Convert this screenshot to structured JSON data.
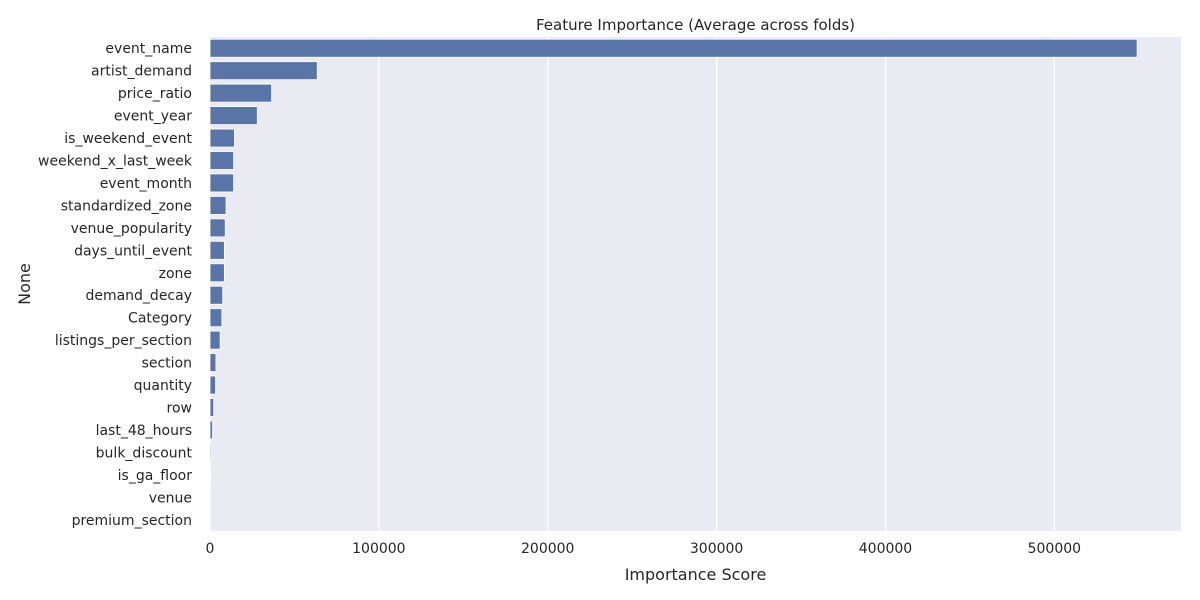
{
  "chart_data": {
    "type": "bar",
    "orientation": "horizontal",
    "title": "Feature Importance (Average across folds)",
    "xlabel": "Importance Score",
    "ylabel": "None",
    "xlim": [
      0,
      575000
    ],
    "x_ticks": [
      0,
      100000,
      200000,
      300000,
      400000,
      500000
    ],
    "x_tick_labels": [
      "0",
      "100000",
      "200000",
      "300000",
      "400000",
      "500000"
    ],
    "grid": true,
    "bar_color": "#5975a8",
    "background_color": "#eaeaf2",
    "grid_color": "#ffffff",
    "categories": [
      "event_name",
      "artist_demand",
      "price_ratio",
      "event_year",
      "is_weekend_event",
      "weekend_x_last_week",
      "event_month",
      "standardized_zone",
      "venue_popularity",
      "days_until_event",
      "zone",
      "demand_decay",
      "Category",
      "listings_per_section",
      "section",
      "quantity",
      "row",
      "last_48_hours",
      "bulk_discount",
      "is_ga_floor",
      "venue",
      "premium_section"
    ],
    "values": [
      549000,
      63500,
      36500,
      28000,
      14500,
      14000,
      14000,
      9500,
      9000,
      8500,
      8500,
      7500,
      7000,
      6000,
      3500,
      3300,
      2200,
      1500,
      600,
      300,
      150,
      80
    ]
  }
}
